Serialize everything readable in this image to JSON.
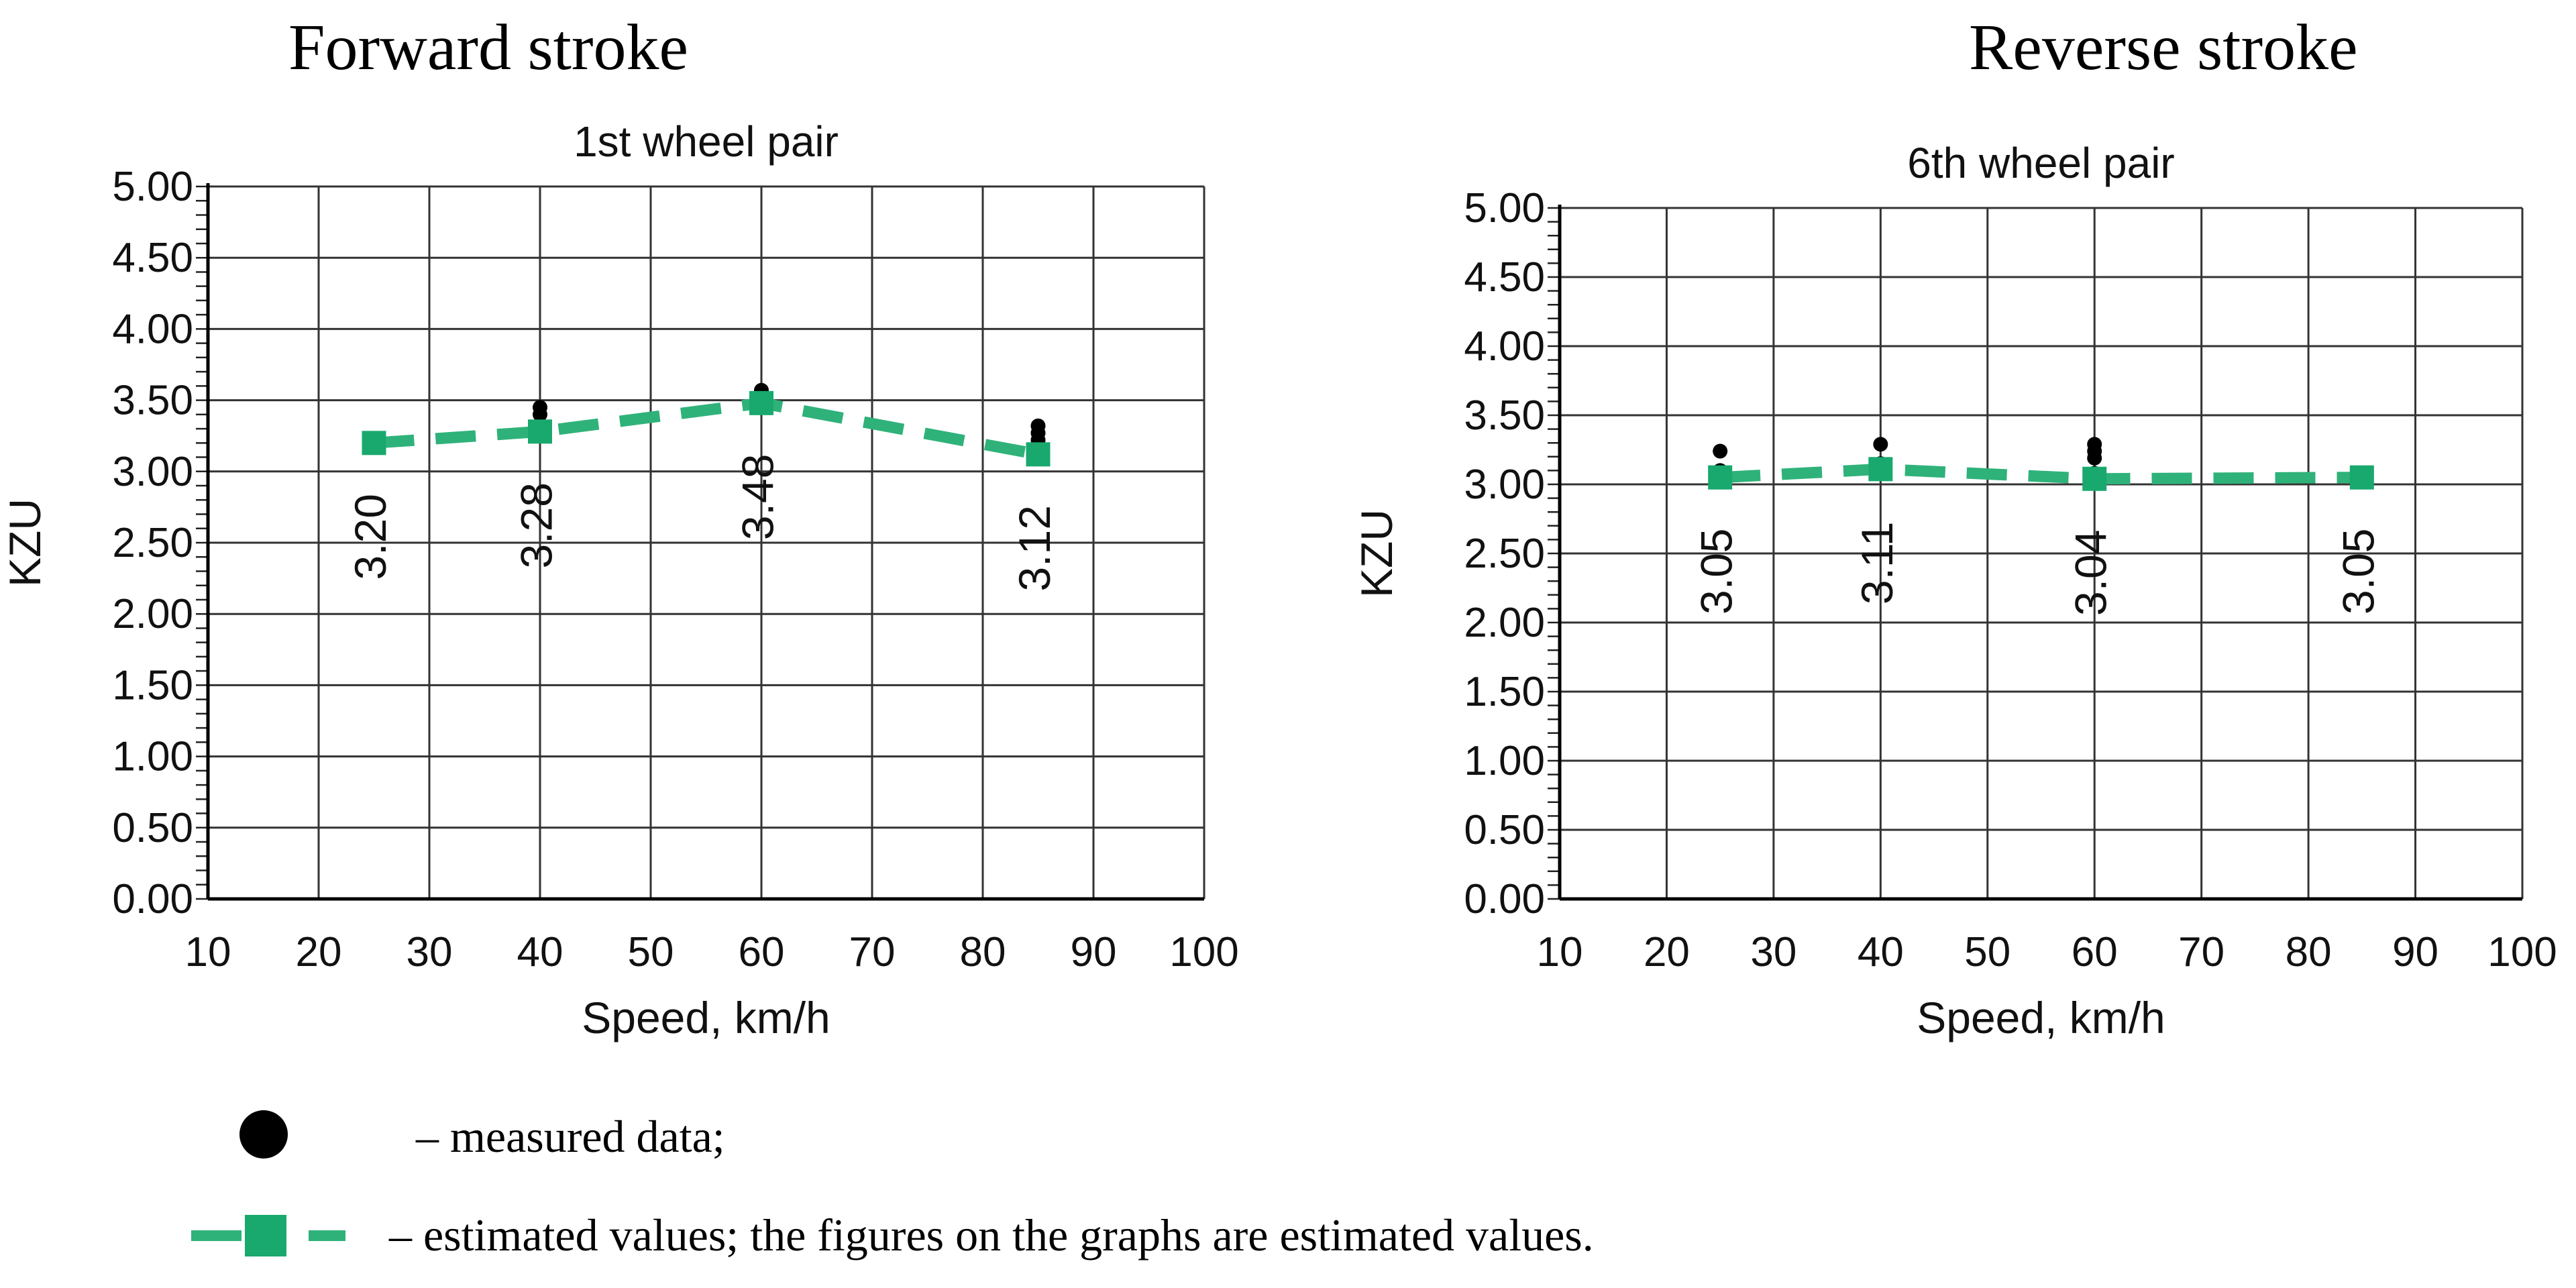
{
  "titles": {
    "left": "Forward stroke",
    "right": "Reverse stroke"
  },
  "legend": {
    "measured_label": "– measured data;",
    "estimated_label": "– estimated values; the figures on the graphs are estimated values."
  },
  "colors": {
    "estimated": "#19a86d",
    "estimated_line": "#2fb27a",
    "measured": "#000000",
    "grid": "#333333"
  },
  "chart_data": [
    {
      "type": "line",
      "title": "1st wheel pair",
      "xlabel": "Speed, km/h",
      "ylabel": "KZU",
      "xlim": [
        10,
        100
      ],
      "ylim": [
        0,
        5
      ],
      "xticks": [
        "10",
        "20",
        "30",
        "40",
        "50",
        "60",
        "70",
        "80",
        "90",
        "100"
      ],
      "yticks": [
        "0.00",
        "0.50",
        "1.00",
        "1.50",
        "2.00",
        "2.50",
        "3.00",
        "3.50",
        "4.00",
        "4.50",
        "5.00"
      ],
      "grid": true,
      "estimated": {
        "x": [
          25,
          40,
          60,
          85
        ],
        "y": [
          3.2,
          3.28,
          3.48,
          3.12
        ],
        "labels": [
          "3.20",
          "3.28",
          "3.48",
          "3.12"
        ]
      },
      "measured": {
        "x": [
          40,
          40,
          60,
          60,
          85,
          85,
          85,
          85
        ],
        "y": [
          3.45,
          3.4,
          3.57,
          3.54,
          3.32,
          3.27,
          3.22,
          3.17
        ]
      }
    },
    {
      "type": "line",
      "title": "6th wheel pair",
      "xlabel": "Speed, km/h",
      "ylabel": "KZU",
      "xlim": [
        10,
        100
      ],
      "ylim": [
        0,
        5
      ],
      "xticks": [
        "10",
        "20",
        "30",
        "40",
        "50",
        "60",
        "70",
        "80",
        "90",
        "100"
      ],
      "yticks": [
        "0.00",
        "0.50",
        "1.00",
        "1.50",
        "2.00",
        "2.50",
        "3.00",
        "3.50",
        "4.00",
        "4.50",
        "5.00"
      ],
      "grid": true,
      "estimated": {
        "x": [
          25,
          40,
          60,
          85
        ],
        "y": [
          3.05,
          3.11,
          3.04,
          3.05
        ],
        "labels": [
          "3.05",
          "3.11",
          "3.04",
          "3.05"
        ]
      },
      "measured": {
        "x": [
          25,
          25,
          40,
          40,
          60,
          60,
          60,
          60
        ],
        "y": [
          3.24,
          3.1,
          3.29,
          3.15,
          3.29,
          3.24,
          3.19,
          3.08
        ]
      }
    }
  ]
}
